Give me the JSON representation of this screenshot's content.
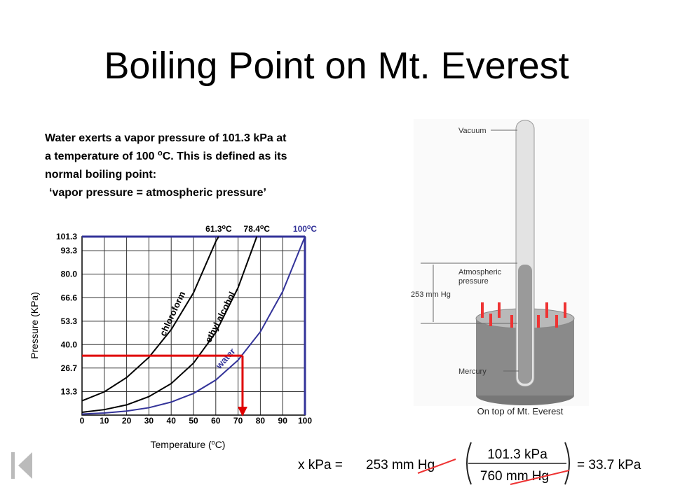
{
  "title": "Boiling Point on Mt. Everest",
  "intro": {
    "line1": "Water exerts a vapor pressure of 101.3 kPa at",
    "line2_a": "a temperature of 100 ",
    "line2_sup": "o",
    "line2_b": "C.  This is defined as its",
    "line3": "normal boiling point:",
    "line4": "‘vapor pressure  =  atmospheric pressure’"
  },
  "chart_data": {
    "type": "line",
    "y_label": "Pressure (KPa)",
    "x_label": {
      "a": "Temperature (",
      "sup": "o",
      "b": "C)"
    },
    "xlim": [
      0,
      100
    ],
    "ylim": [
      0,
      101.3
    ],
    "xticks": [
      0,
      10,
      20,
      30,
      40,
      50,
      60,
      70,
      80,
      90,
      100
    ],
    "yticks": [
      13.3,
      26.7,
      {
        "value": 40,
        "label": "40.0"
      },
      53.3,
      66.6,
      {
        "value": 80,
        "label": "80.0"
      },
      93.3,
      101.3
    ],
    "grid": true,
    "series": [
      {
        "name": "chloroform",
        "color": "#000000",
        "x": [
          0,
          10,
          20,
          30,
          40,
          50,
          60,
          61.3
        ],
        "values": [
          8.1,
          13.2,
          21.3,
          32.8,
          48.5,
          69.4,
          98.5,
          101.3
        ]
      },
      {
        "name": "ethyl alcohol",
        "color": "#000000",
        "x": [
          0,
          10,
          20,
          30,
          40,
          50,
          60,
          70,
          78.4
        ],
        "values": [
          1.6,
          3.1,
          5.8,
          10.5,
          17.9,
          29.5,
          46.9,
          72.3,
          101.3
        ]
      },
      {
        "name": "water",
        "color": "#333399",
        "x": [
          0,
          10,
          20,
          30,
          40,
          50,
          60,
          70,
          80,
          90,
          100
        ],
        "values": [
          0.6,
          1.2,
          2.3,
          4.2,
          7.4,
          12.3,
          19.9,
          31.2,
          47.3,
          70.1,
          101.3
        ]
      }
    ],
    "boiling_points": [
      {
        "value": 61.3,
        "label": "61.3",
        "color": "#000000"
      },
      {
        "value": 78.4,
        "label": "78.4",
        "color": "#000000"
      },
      {
        "value": 100,
        "label": "100",
        "color": "#333399"
      }
    ],
    "unit_sup": "o",
    "unit": "C",
    "guide": {
      "x": 72,
      "y": 33.7,
      "color": "#e00000"
    }
  },
  "barometer": {
    "vacuum": "Vacuum",
    "atm1": "Atmospheric",
    "atm2": "pressure",
    "height": "253 mm Hg",
    "mercury": "Mercury",
    "caption": "On top of Mt. Everest"
  },
  "equation": {
    "left": "x kPa  =",
    "given": "253 mm Hg",
    "numerator": "101.3 kPa",
    "denominator": "760 mm Hg",
    "result": "= 33.7 kPa"
  }
}
